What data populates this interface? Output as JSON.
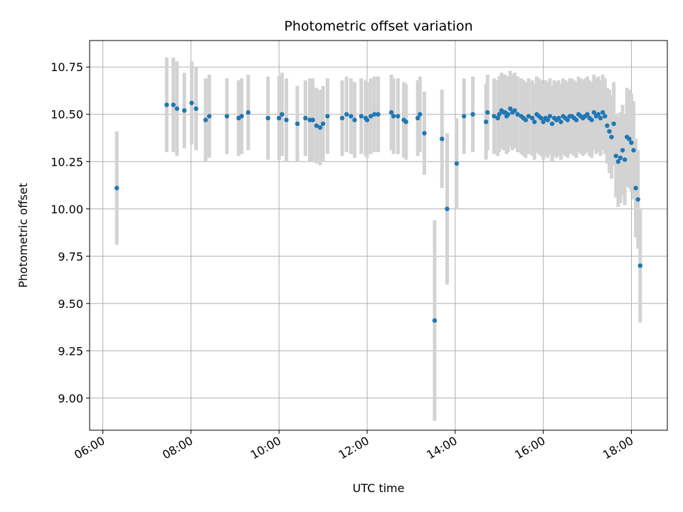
{
  "chart_data": {
    "type": "scatter",
    "title": "Photometric offset variation",
    "xlabel": "UTC time",
    "ylabel": "Photometric offset",
    "x_tick_labels": [
      "06:00",
      "08:00",
      "10:00",
      "12:00",
      "14:00",
      "16:00",
      "18:00"
    ],
    "y_tick_labels": [
      "9.00",
      "9.25",
      "9.50",
      "9.75",
      "10.00",
      "10.25",
      "10.50",
      "10.75"
    ],
    "xlim": [
      "05:42",
      "18:49"
    ],
    "ylim": [
      8.83,
      10.89
    ],
    "grid": true,
    "colors": {
      "point": "#1f77b4",
      "errorbar": "#d3d3d3",
      "grid": "#b0b0b0"
    },
    "series": [
      {
        "x": [
          "06:19",
          "07:27",
          "07:36",
          "07:41",
          "07:51",
          "08:01",
          "08:07",
          "08:20",
          "08:25",
          "08:49",
          "09:05",
          "09:09",
          "09:18",
          "09:45",
          "10:00",
          "10:04",
          "10:10",
          "10:25",
          "10:36",
          "10:42",
          "10:46",
          "10:51",
          "10:56",
          "11:00",
          "11:06",
          "11:26",
          "11:32",
          "11:38",
          "11:43",
          "11:52",
          "11:58",
          "12:00",
          "12:05",
          "12:10",
          "12:15",
          "12:33",
          "12:36",
          "12:42",
          "12:50",
          "12:53",
          "13:09",
          "13:12",
          "13:18",
          "13:32",
          "13:42",
          "13:49",
          "14:02",
          "14:12",
          "14:24",
          "14:42",
          "14:44",
          "14:53",
          "14:58",
          "15:00",
          "15:03",
          "15:06",
          "15:08",
          "15:10",
          "15:12",
          "15:15",
          "15:18",
          "15:21",
          "15:25",
          "15:30",
          "15:33",
          "15:36",
          "15:40",
          "15:45",
          "15:48",
          "15:51",
          "15:54",
          "15:57",
          "16:00",
          "16:03",
          "16:06",
          "16:09",
          "16:12",
          "16:15",
          "16:18",
          "16:21",
          "16:24",
          "16:27",
          "16:30",
          "16:33",
          "16:36",
          "16:39",
          "16:42",
          "16:45",
          "16:48",
          "16:51",
          "16:54",
          "16:57",
          "17:00",
          "17:03",
          "17:06",
          "17:09",
          "17:12",
          "17:15",
          "17:18",
          "17:21",
          "17:24",
          "17:27",
          "17:30",
          "17:33",
          "17:36",
          "17:39",
          "17:42",
          "17:45",
          "17:48",
          "17:51",
          "17:54",
          "17:57",
          "18:00",
          "18:03",
          "18:06",
          "18:09",
          "18:12"
        ],
        "y": [
          10.11,
          10.55,
          10.55,
          10.53,
          10.52,
          10.56,
          10.53,
          10.47,
          10.49,
          10.49,
          10.48,
          10.49,
          10.51,
          10.48,
          10.48,
          10.5,
          10.47,
          10.45,
          10.48,
          10.47,
          10.47,
          10.44,
          10.43,
          10.45,
          10.49,
          10.48,
          10.5,
          10.49,
          10.47,
          10.49,
          10.48,
          10.47,
          10.49,
          10.5,
          10.5,
          10.51,
          10.49,
          10.49,
          10.47,
          10.46,
          10.48,
          10.5,
          10.4,
          9.41,
          10.37,
          10.0,
          10.24,
          10.49,
          10.5,
          10.46,
          10.51,
          10.49,
          10.48,
          10.5,
          10.52,
          10.51,
          10.51,
          10.49,
          10.5,
          10.53,
          10.51,
          10.52,
          10.5,
          10.49,
          10.48,
          10.47,
          10.49,
          10.48,
          10.46,
          10.5,
          10.49,
          10.48,
          10.46,
          10.48,
          10.47,
          10.49,
          10.45,
          10.48,
          10.47,
          10.48,
          10.46,
          10.49,
          10.48,
          10.47,
          10.49,
          10.49,
          10.48,
          10.47,
          10.5,
          10.49,
          10.48,
          10.49,
          10.5,
          10.48,
          10.47,
          10.51,
          10.49,
          10.5,
          10.48,
          10.51,
          10.49,
          10.44,
          10.41,
          10.38,
          10.45,
          10.28,
          10.25,
          10.27,
          10.31,
          10.26,
          10.38,
          10.37,
          10.35,
          10.31,
          10.11,
          10.05,
          9.7
        ],
        "yerr": [
          0.3,
          0.25,
          0.25,
          0.25,
          0.2,
          0.22,
          0.22,
          0.22,
          0.22,
          0.2,
          0.2,
          0.2,
          0.2,
          0.22,
          0.22,
          0.22,
          0.22,
          0.2,
          0.2,
          0.22,
          0.22,
          0.2,
          0.2,
          0.2,
          0.2,
          0.2,
          0.2,
          0.2,
          0.2,
          0.2,
          0.2,
          0.2,
          0.2,
          0.2,
          0.2,
          0.2,
          0.2,
          0.2,
          0.2,
          0.2,
          0.2,
          0.2,
          0.22,
          0.53,
          0.26,
          0.4,
          0.24,
          0.2,
          0.2,
          0.2,
          0.2,
          0.2,
          0.2,
          0.2,
          0.2,
          0.2,
          0.2,
          0.2,
          0.2,
          0.2,
          0.2,
          0.2,
          0.2,
          0.2,
          0.2,
          0.2,
          0.2,
          0.2,
          0.2,
          0.2,
          0.2,
          0.2,
          0.2,
          0.2,
          0.2,
          0.2,
          0.2,
          0.2,
          0.2,
          0.2,
          0.2,
          0.2,
          0.2,
          0.2,
          0.2,
          0.2,
          0.2,
          0.2,
          0.2,
          0.2,
          0.2,
          0.2,
          0.2,
          0.2,
          0.2,
          0.2,
          0.2,
          0.2,
          0.2,
          0.2,
          0.2,
          0.2,
          0.22,
          0.22,
          0.22,
          0.22,
          0.24,
          0.24,
          0.24,
          0.24,
          0.26,
          0.26,
          0.26,
          0.26,
          0.26,
          0.26,
          0.3
        ]
      }
    ]
  }
}
